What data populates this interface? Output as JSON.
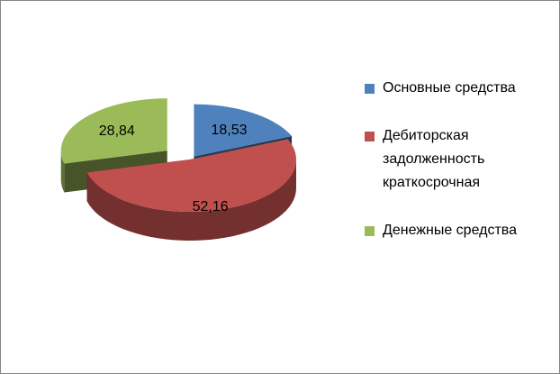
{
  "chart_data": {
    "type": "pie",
    "categories": [
      "Основные средства",
      "Дебиторская задолженность краткосрочная",
      "Денежные средства"
    ],
    "values": [
      18.53,
      52.16,
      28.84
    ],
    "value_labels": [
      "18,53",
      "52,16",
      "28,84"
    ],
    "colors": [
      "#4f81bd",
      "#c0504d",
      "#9bbb59"
    ],
    "legend": "right"
  }
}
